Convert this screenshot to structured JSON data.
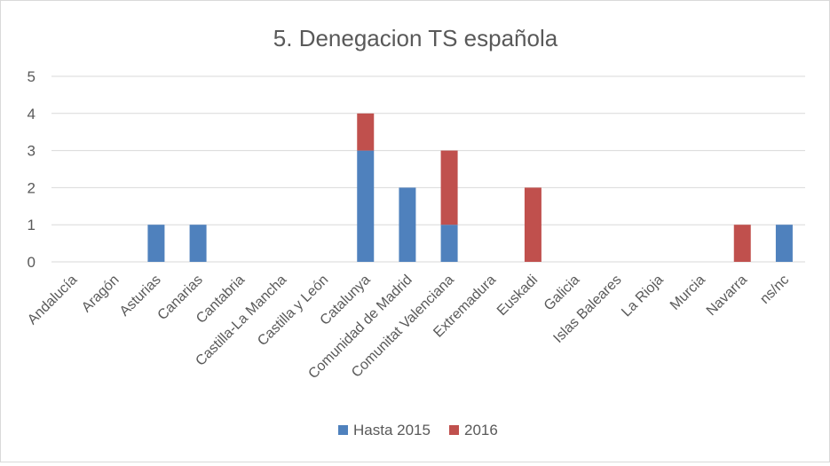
{
  "chart_data": {
    "type": "bar",
    "stacked": true,
    "title": "5. Denegacion TS española",
    "xlabel": "",
    "ylabel": "",
    "ylim": [
      0,
      5
    ],
    "yticks": [
      "0",
      "1",
      "2",
      "3",
      "4",
      "5"
    ],
    "grid": true,
    "legend_position": "bottom",
    "categories": [
      "Andalucía",
      "Aragón",
      "Asturias",
      "Canarias",
      "Cantabria",
      "Castilla-La Mancha",
      "Castilla y León",
      "Catalunya",
      "Comunidad de Madrid",
      "Comunitat Valenciana",
      "Extremadura",
      "Euskadi",
      "Galicia",
      "Islas Baleares",
      "La Rioja",
      "Murcia",
      "Navarra",
      "ns/nc"
    ],
    "series": [
      {
        "name": "Hasta 2015",
        "color": "#4f81bd",
        "values": [
          0,
          0,
          1,
          1,
          0,
          0,
          0,
          3,
          2,
          1,
          0,
          0,
          0,
          0,
          0,
          0,
          0,
          1
        ]
      },
      {
        "name": "2016",
        "color": "#c0504d",
        "values": [
          0,
          0,
          0,
          0,
          0,
          0,
          0,
          1,
          0,
          2,
          0,
          2,
          0,
          0,
          0,
          0,
          1,
          0
        ]
      }
    ]
  }
}
